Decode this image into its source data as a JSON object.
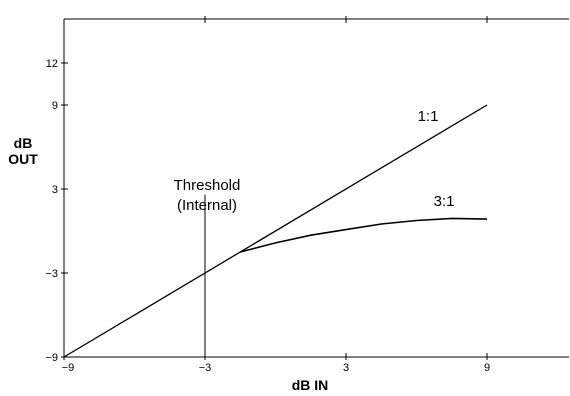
{
  "chart_data": {
    "type": "line",
    "title": "",
    "xlabel": "dB IN",
    "ylabel": [
      "dB",
      "OUT"
    ],
    "xlim": [
      -9,
      12
    ],
    "ylim": [
      -9,
      12
    ],
    "x_ticks": [
      -9,
      -3,
      3,
      9
    ],
    "x_tick_labels": [
      "−9",
      "−3",
      "3",
      "9"
    ],
    "y_ticks": [
      -9,
      -3,
      3,
      9,
      12
    ],
    "y_tick_labels": [
      "−9",
      "−3",
      "3",
      "9",
      "12"
    ],
    "grid": false,
    "series": [
      {
        "name": "1:1",
        "points": [
          [
            -9,
            -9
          ],
          [
            9,
            9
          ]
        ]
      },
      {
        "name": "3:1",
        "points": [
          [
            -1.5,
            -1.5
          ],
          [
            0,
            -0.85
          ],
          [
            1.5,
            -0.3
          ],
          [
            3,
            0.1
          ],
          [
            4.5,
            0.5
          ],
          [
            6,
            0.75
          ],
          [
            7.5,
            0.9
          ],
          [
            9,
            0.85
          ]
        ]
      }
    ],
    "annotations": {
      "threshold_line": {
        "x": -3,
        "y_range": [
          -9,
          2.6
        ]
      },
      "threshold_label": [
        "Threshold",
        "(Internal)"
      ]
    }
  }
}
